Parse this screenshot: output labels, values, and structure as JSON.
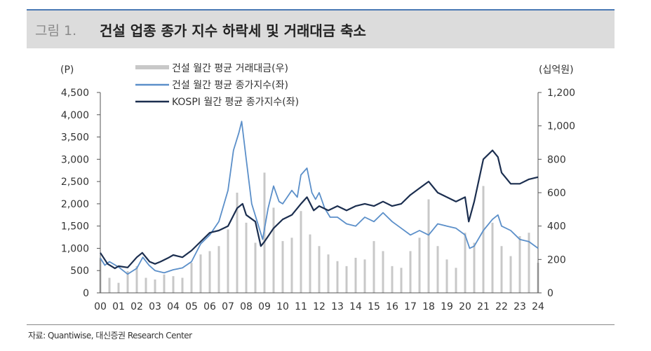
{
  "figure": {
    "label": "그림 1.",
    "title": "건설 업종 종가 지수 하락세 및 거래대금 축소",
    "source": "자료: Quantiwise, 대신증권 Research Center"
  },
  "colors": {
    "accent_line": "#4a79b4",
    "header_bg": "#dcdcdc",
    "bars": "#c8c8c8",
    "construction_index": "#5b8fc9",
    "kospi": "#1b2e4f"
  },
  "chart_data": {
    "type": "line",
    "left_axis_unit": "(P)",
    "right_axis_unit": "(십억원)",
    "ylim_left": [
      0,
      4500
    ],
    "yticks_left": [
      "4,500",
      "4,000",
      "3,500",
      "3,000",
      "2,500",
      "2,000",
      "1,500",
      "1,000",
      "500",
      "0"
    ],
    "ylim_right": [
      0,
      1200
    ],
    "yticks_right": [
      "1,200",
      "1,000",
      "800",
      "600",
      "400",
      "200",
      "0"
    ],
    "x_ticks": [
      "00",
      "01",
      "02",
      "03",
      "04",
      "05",
      "06",
      "07",
      "08",
      "09",
      "10",
      "11",
      "12",
      "13",
      "14",
      "15",
      "16",
      "17",
      "18",
      "19",
      "20",
      "21",
      "22",
      "23",
      "24"
    ],
    "legend_position": "top-center",
    "series": [
      {
        "name": "건설 월간 평균 거래대금(우)",
        "kind": "bar",
        "axis": "right",
        "x": [
          2000.0,
          2000.5,
          2001.0,
          2001.5,
          2002.0,
          2002.5,
          2003.0,
          2003.5,
          2004.0,
          2004.5,
          2005.0,
          2005.5,
          2006.0,
          2006.5,
          2007.0,
          2007.5,
          2008.0,
          2008.5,
          2009.0,
          2009.5,
          2010.0,
          2010.5,
          2011.0,
          2011.5,
          2012.0,
          2012.5,
          2013.0,
          2013.5,
          2014.0,
          2014.5,
          2015.0,
          2015.5,
          2016.0,
          2016.5,
          2017.0,
          2017.5,
          2018.0,
          2018.5,
          2019.0,
          2019.5,
          2020.0,
          2020.5,
          2021.0,
          2021.5,
          2022.0,
          2022.5,
          2023.0,
          2023.5,
          2024.0
        ],
        "values": [
          210,
          90,
          60,
          130,
          160,
          90,
          80,
          110,
          100,
          90,
          180,
          230,
          250,
          280,
          380,
          600,
          420,
          300,
          720,
          510,
          310,
          330,
          490,
          350,
          280,
          230,
          190,
          160,
          210,
          200,
          310,
          250,
          160,
          150,
          250,
          330,
          560,
          280,
          200,
          150,
          360,
          300,
          640,
          420,
          280,
          220,
          340,
          360,
          180
        ]
      },
      {
        "name": "건설 월간 평균 종가지수(좌)",
        "kind": "line",
        "axis": "left",
        "x": [
          2000.0,
          2000.25,
          2000.5,
          2001.0,
          2001.5,
          2002.0,
          2002.33,
          2002.67,
          2003.0,
          2003.5,
          2004.0,
          2004.5,
          2005.0,
          2005.5,
          2006.0,
          2006.5,
          2007.0,
          2007.3,
          2007.6,
          2007.75,
          2008.0,
          2008.3,
          2008.6,
          2008.9,
          2009.2,
          2009.5,
          2009.8,
          2010.0,
          2010.5,
          2010.8,
          2011.0,
          2011.33,
          2011.6,
          2011.8,
          2012.0,
          2012.3,
          2012.6,
          2013.0,
          2013.5,
          2014.0,
          2014.5,
          2015.0,
          2015.5,
          2016.0,
          2016.5,
          2017.0,
          2017.5,
          2018.0,
          2018.5,
          2019.0,
          2019.5,
          2020.0,
          2020.25,
          2020.5,
          2021.0,
          2021.5,
          2021.8,
          2022.0,
          2022.5,
          2023.0,
          2023.5,
          2024.0
        ],
        "values": [
          780,
          620,
          700,
          580,
          420,
          550,
          800,
          620,
          500,
          450,
          520,
          560,
          700,
          1100,
          1300,
          1600,
          2300,
          3200,
          3600,
          3850,
          3000,
          2000,
          1600,
          1200,
          1900,
          2400,
          2050,
          2000,
          2300,
          2150,
          2650,
          2800,
          2250,
          2100,
          2250,
          1900,
          1700,
          1700,
          1550,
          1500,
          1700,
          1600,
          1800,
          1600,
          1450,
          1300,
          1400,
          1300,
          1550,
          1500,
          1450,
          1300,
          1000,
          1050,
          1400,
          1650,
          1750,
          1500,
          1400,
          1200,
          1150,
          1000
        ]
      },
      {
        "name": "KOSPI 월간 평균 종가지수(좌)",
        "kind": "line",
        "axis": "left",
        "x": [
          2000.0,
          2000.4,
          2000.8,
          2001.0,
          2001.5,
          2002.0,
          2002.3,
          2002.7,
          2003.0,
          2003.3,
          2003.7,
          2004.0,
          2004.5,
          2005.0,
          2005.5,
          2006.0,
          2006.5,
          2007.0,
          2007.5,
          2007.8,
          2008.0,
          2008.5,
          2008.8,
          2009.0,
          2009.5,
          2010.0,
          2010.5,
          2011.0,
          2011.33,
          2011.7,
          2012.0,
          2012.5,
          2013.0,
          2013.5,
          2014.0,
          2014.5,
          2015.0,
          2015.5,
          2016.0,
          2016.5,
          2017.0,
          2017.5,
          2018.0,
          2018.5,
          2019.0,
          2019.5,
          2020.0,
          2020.2,
          2020.5,
          2021.0,
          2021.5,
          2021.8,
          2022.0,
          2022.5,
          2023.0,
          2023.5,
          2024.0
        ],
        "values": [
          900,
          650,
          550,
          600,
          570,
          800,
          900,
          700,
          650,
          700,
          780,
          850,
          800,
          950,
          1150,
          1350,
          1400,
          1500,
          1900,
          2000,
          1750,
          1600,
          1050,
          1150,
          1450,
          1650,
          1750,
          2000,
          2150,
          1850,
          1950,
          1850,
          1950,
          1850,
          1950,
          2000,
          1950,
          2050,
          1950,
          2000,
          2200,
          2350,
          2500,
          2250,
          2150,
          2050,
          2150,
          1600,
          2050,
          3000,
          3200,
          3050,
          2700,
          2450,
          2450,
          2550,
          2600
        ]
      }
    ]
  }
}
